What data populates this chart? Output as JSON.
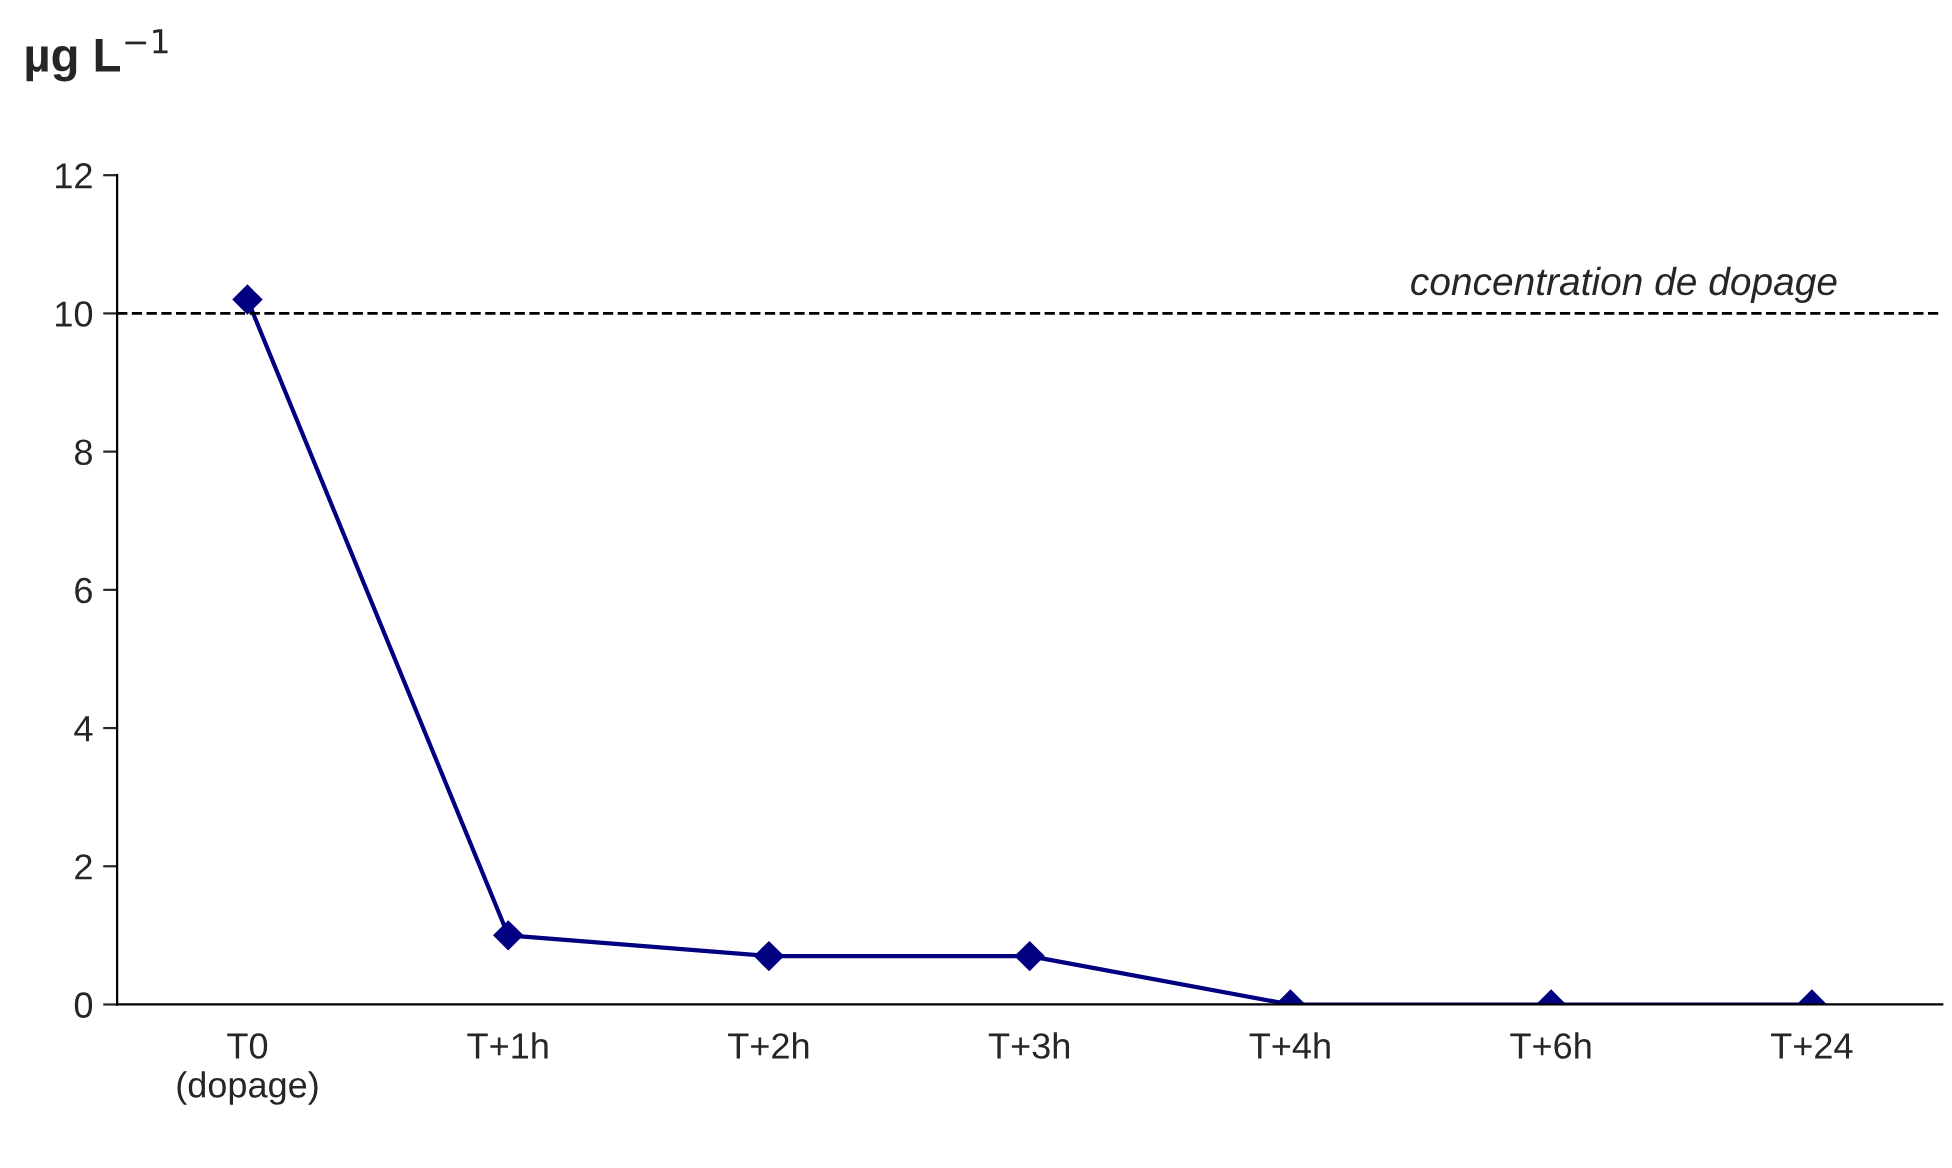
{
  "chart_data": {
    "type": "line",
    "ylabel": "µg L$^{−1}$",
    "categories": [
      "T0\n(dopage)",
      "T+1h",
      "T+2h",
      "T+3h",
      "T+4h",
      "T+6h",
      "T+24"
    ],
    "series": [
      {
        "color": "#000080",
        "values": [
          10.2,
          1.0,
          0.7,
          0.7,
          0.0,
          0.0,
          0.0
        ]
      }
    ],
    "ylim": [
      0,
      12
    ],
    "yticks": [
      0,
      2,
      4,
      6,
      8,
      10,
      12
    ],
    "ref_lines": [
      {
        "axis": "y",
        "value": 10,
        "label": "concentration de dopage",
        "color": "#000000",
        "line_style": "dashed"
      }
    ],
    "marker": "diamond",
    "line_style": "solid",
    "grid": false,
    "legend": false
  }
}
